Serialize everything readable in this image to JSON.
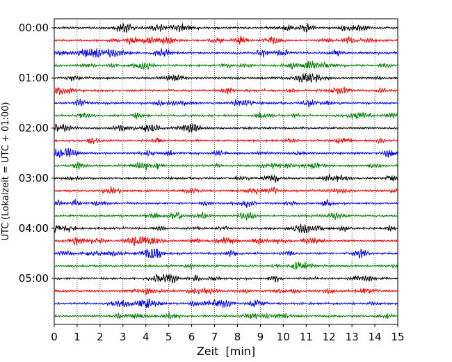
{
  "chart_data": {
    "type": "line",
    "title": "",
    "xlabel": "Zeit  [min]",
    "ylabel": "UTC (Lokalzeit = UTC + 01:00)",
    "xlim": [
      0,
      15
    ],
    "x_ticks": [
      "0",
      "1",
      "2",
      "3",
      "4",
      "5",
      "6",
      "7",
      "8",
      "9",
      "10",
      "11",
      "12",
      "13",
      "14",
      "15"
    ],
    "y_ticks": [
      "00:00",
      "01:00",
      "02:00",
      "03:00",
      "04:00",
      "05:00"
    ],
    "rows_per_hour": 4,
    "minutes_per_row": 15,
    "trace_count": 24,
    "trace_colors": [
      "#000000",
      "#ff0000",
      "#0000ff",
      "#008000"
    ],
    "grid": "vertical dotted lines at each minute",
    "legend": "none"
  }
}
